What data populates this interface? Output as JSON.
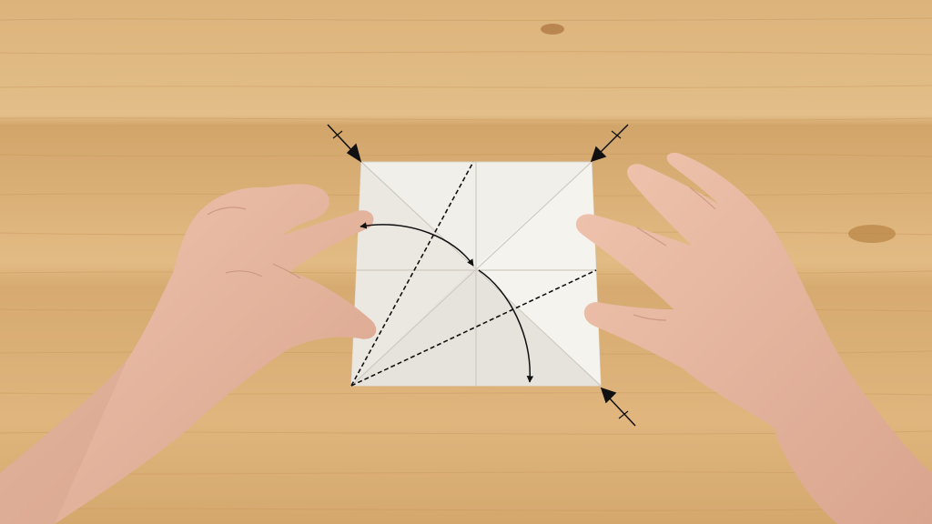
{
  "scene": {
    "subject": "origami-folding-instruction",
    "surface": "light-wood-table",
    "colors": {
      "wood_light": "#e2bc86",
      "wood_mid": "#d7ad72",
      "wood_dark": "#c99a5f",
      "paper": "#f2f0ea",
      "paper_shadow": "#d9d6ce",
      "skin": "#e8b9a3",
      "skin_shadow": "#cf9a84",
      "diagram_ink": "#111111"
    },
    "icons": [
      "corner-arrow-icon",
      "curved-fold-arrow-icon"
    ]
  }
}
